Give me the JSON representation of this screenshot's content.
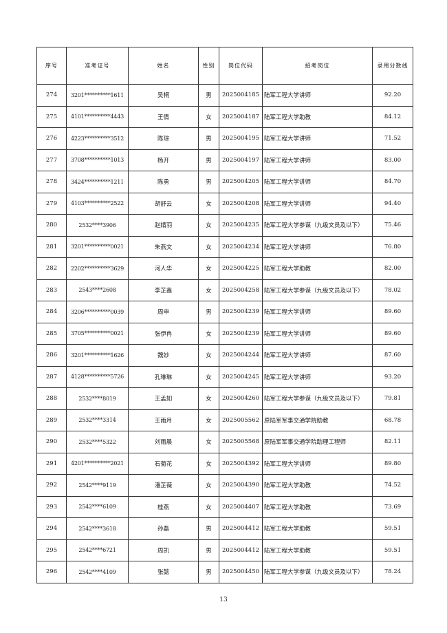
{
  "table": {
    "headers": [
      "序号",
      "准考证号",
      "姓名",
      "性别",
      "岗位代码",
      "招考岗位",
      "录用分数线"
    ],
    "rows": [
      [
        "274",
        "3201**********1611",
        "吴桐",
        "男",
        "2025004185",
        "陆军工程大学讲师",
        "92.20"
      ],
      [
        "275",
        "4101**********4443",
        "王倩",
        "女",
        "2025004187",
        "陆军工程大学助教",
        "84.12"
      ],
      [
        "276",
        "4223**********3512",
        "陈琮",
        "男",
        "2025004195",
        "陆军工程大学讲师",
        "71.52"
      ],
      [
        "277",
        "3708**********1013",
        "杨开",
        "男",
        "2025004197",
        "陆军工程大学讲师",
        "83.00"
      ],
      [
        "278",
        "3424**********1211",
        "陈勇",
        "男",
        "2025004205",
        "陆军工程大学讲师",
        "84.70"
      ],
      [
        "279",
        "4103**********2522",
        "胡舒云",
        "女",
        "2025004208",
        "陆军工程大学讲师",
        "94.40"
      ],
      [
        "280",
        "2532****3906",
        "赵婧羽",
        "女",
        "2025004235",
        "陆军工程大学参谋（九级文员及以下）",
        "75.46"
      ],
      [
        "281",
        "3201**********0021",
        "朱燕文",
        "女",
        "2025004234",
        "陆军工程大学讲师",
        "76.80"
      ],
      [
        "282",
        "2202**********3629",
        "河人华",
        "女",
        "2025004225",
        "陆军工程大学助教",
        "82.00"
      ],
      [
        "283",
        "2543****2608",
        "李芷鑫",
        "女",
        "2025004258",
        "陆军工程大学参谋（九级文员及以下）",
        "78.02"
      ],
      [
        "284",
        "3206**********0039",
        "周申",
        "男",
        "2025004239",
        "陆军工程大学讲师",
        "89.60"
      ],
      [
        "285",
        "3705**********0021",
        "张伊冉",
        "女",
        "2025004239",
        "陆军工程大学讲师",
        "89.60"
      ],
      [
        "286",
        "3201**********1626",
        "魏妙",
        "女",
        "2025004244",
        "陆军工程大学讲师",
        "87.60"
      ],
      [
        "287",
        "4128**********5726",
        "孔琳琳",
        "女",
        "2025004245",
        "陆军工程大学讲师",
        "93.20"
      ],
      [
        "288",
        "2532****8019",
        "王孟如",
        "女",
        "2025004260",
        "陆军工程大学参谋（九级文员及以下）",
        "79.81"
      ],
      [
        "289",
        "2532****3314",
        "王雨月",
        "女",
        "2025005562",
        "原陆军军事交通学院助教",
        "68.78"
      ],
      [
        "290",
        "2532****5322",
        "刘雨晨",
        "女",
        "2025005568",
        "原陆军军事交通学院助理工程师",
        "82.11"
      ],
      [
        "291",
        "4201**********2021",
        "石菊花",
        "女",
        "2025004392",
        "陆军工程大学讲师",
        "89.80"
      ],
      [
        "292",
        "2542****9119",
        "潘芷薇",
        "女",
        "2025004390",
        "陆军工程大学助教",
        "74.52"
      ],
      [
        "293",
        "2542****6109",
        "桂燕",
        "女",
        "2025004407",
        "陆军工程大学助教",
        "73.69"
      ],
      [
        "294",
        "2542****3618",
        "孙磊",
        "男",
        "2025004412",
        "陆军工程大学助教",
        "59.51"
      ],
      [
        "295",
        "2542****6721",
        "周凯",
        "男",
        "2025004412",
        "陆军工程大学助教",
        "59.51"
      ],
      [
        "296",
        "2542****4109",
        "张懿",
        "男",
        "2025004450",
        "陆军工程大学参谋（九级文员及以下）",
        "78.24"
      ]
    ]
  },
  "page_number": "13"
}
